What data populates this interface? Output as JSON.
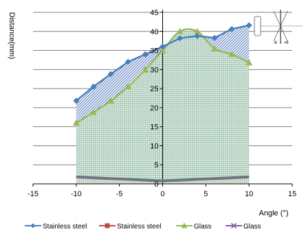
{
  "chart_data": {
    "type": "area",
    "xlabel": "Angle (°)",
    "ylabel": "Distance(mm)",
    "xlim": [
      -15,
      15
    ],
    "ylim": [
      0,
      45
    ],
    "x_ticks": [
      -15,
      -10,
      -5,
      0,
      5,
      10,
      15
    ],
    "y_ticks": [
      0,
      5,
      10,
      15,
      20,
      25,
      30,
      35,
      40,
      45
    ],
    "grid": "horizontal",
    "legend_position": "bottom",
    "series": [
      {
        "name": "Stainless steel",
        "kind": "area-line",
        "marker": "diamond",
        "color": "#4a7ebb",
        "x": [
          -10,
          -8,
          -6,
          -4,
          -2,
          0,
          2,
          4,
          6,
          8,
          10
        ],
        "y": [
          21.8,
          25.5,
          28.8,
          32.0,
          34.0,
          36.0,
          38.2,
          38.8,
          38.3,
          40.6,
          41.6
        ]
      },
      {
        "name": "Stainless steel",
        "kind": "area-line",
        "marker": "square",
        "color": "#be4b48",
        "x": [
          -10,
          0,
          10
        ],
        "y": [
          1.8,
          0.8,
          1.8
        ]
      },
      {
        "name": "Glass",
        "kind": "area-line",
        "marker": "triangle",
        "color": "#98b954",
        "x": [
          -10,
          -8,
          -6,
          -4,
          -2,
          0,
          2,
          4,
          6,
          8,
          10
        ],
        "y": [
          16.0,
          18.8,
          21.8,
          25.5,
          30.0,
          35.0,
          40.0,
          40.0,
          35.5,
          34.0,
          31.8
        ]
      },
      {
        "name": "Glass",
        "kind": "area-line",
        "marker": "x",
        "color": "#7d60a0",
        "x": [
          -10,
          0,
          10
        ],
        "y": [
          1.8,
          0.8,
          1.8
        ]
      }
    ],
    "inset": {
      "labels": [
        "-θ",
        "+θ"
      ]
    }
  }
}
